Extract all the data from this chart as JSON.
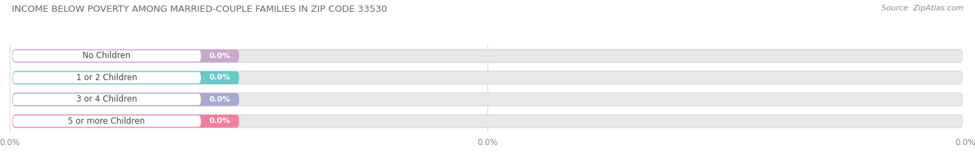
{
  "title": "INCOME BELOW POVERTY AMONG MARRIED-COUPLE FAMILIES IN ZIP CODE 33530",
  "source": "Source: ZipAtlas.com",
  "categories": [
    "No Children",
    "1 or 2 Children",
    "3 or 4 Children",
    "5 or more Children"
  ],
  "values": [
    0.0,
    0.0,
    0.0,
    0.0
  ],
  "bar_colors": [
    "#c8a8cc",
    "#6ac8c8",
    "#a8a8d0",
    "#f080a0"
  ],
  "title_color": "#666666",
  "source_color": "#888888",
  "label_text_color": "#444444",
  "value_text_color": "#ffffff",
  "track_color": "#e8e8e8",
  "track_edge_color": "#d8d8d8",
  "figsize": [
    14.06,
    2.33
  ],
  "dpi": 100,
  "xtick_labels": [
    "0.0%",
    "0.0%",
    "0.0%"
  ],
  "xtick_positions": [
    0,
    50,
    100
  ]
}
